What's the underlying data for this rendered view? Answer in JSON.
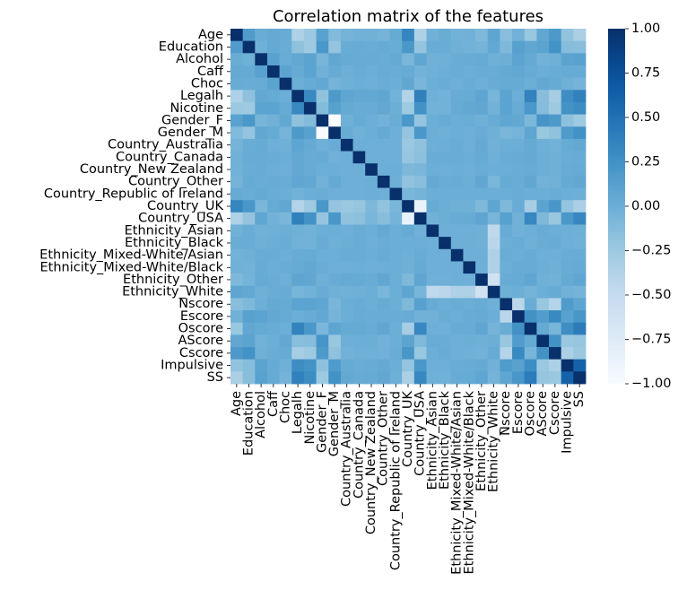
{
  "chart_data": {
    "type": "heatmap",
    "title": "Correlation matrix of the features",
    "xlabel": "",
    "ylabel": "",
    "colormap": "Blues",
    "colorscale": {
      "low": "#f7fbff",
      "high": "#08306b"
    },
    "vmin": -1.0,
    "vmax": 1.0,
    "colorbar": {
      "ticks": [
        1.0,
        0.75,
        0.5,
        0.25,
        0.0,
        -0.25,
        -0.5,
        -0.75,
        -1.0
      ],
      "tick_labels": [
        "1.00",
        "0.75",
        "0.50",
        "0.25",
        "0.00",
        "−0.25",
        "−0.50",
        "−0.75",
        "−1.00"
      ]
    },
    "labels": [
      "Age",
      "Education",
      "Alcohol",
      "Caff",
      "Choc",
      "Legalh",
      "Nicotine",
      "Gender_F",
      "Gender_M",
      "Country_Australia",
      "Country_Canada",
      "Country_New Zealand",
      "Country_Other",
      "Country_Republic of Ireland",
      "Country_UK",
      "Country_USA",
      "Ethnicity_Asian",
      "Ethnicity_Black",
      "Ethnicity_Mixed-White/Asian",
      "Ethnicity_Mixed-White/Black",
      "Ethnicity_Other",
      "Ethnicity_White",
      "Nscore",
      "Escore",
      "Oscore",
      "AScore",
      "Cscore",
      "Impulsive",
      "SS"
    ],
    "matrix": [
      [
        1.0,
        0.16,
        0.01,
        0.04,
        0.02,
        -0.35,
        -0.24,
        0.11,
        -0.11,
        -0.05,
        -0.03,
        -0.03,
        -0.05,
        0.03,
        0.35,
        -0.35,
        -0.03,
        0.01,
        -0.04,
        -0.03,
        -0.1,
        0.08,
        -0.14,
        -0.03,
        -0.22,
        0.06,
        0.18,
        -0.19,
        -0.33
      ],
      [
        0.16,
        1.0,
        -0.02,
        0.04,
        0.01,
        -0.17,
        -0.25,
        0.2,
        -0.2,
        0.01,
        0.02,
        0.01,
        0.03,
        0.01,
        0.2,
        -0.2,
        0.01,
        0.01,
        -0.02,
        -0.04,
        -0.05,
        0.05,
        -0.1,
        0.12,
        0.06,
        0.09,
        0.24,
        -0.13,
        -0.14
      ],
      [
        0.01,
        -0.02,
        1.0,
        0.11,
        0.02,
        0.05,
        0.09,
        -0.06,
        0.06,
        0.03,
        0.02,
        0.02,
        0.01,
        0.04,
        -0.07,
        0.07,
        -0.03,
        -0.02,
        0.01,
        0.02,
        0.03,
        -0.02,
        -0.01,
        0.1,
        0.04,
        -0.04,
        -0.02,
        0.09,
        0.11
      ],
      [
        0.04,
        0.04,
        0.11,
        1.0,
        0.09,
        0.03,
        0.1,
        -0.03,
        0.03,
        -0.01,
        0.01,
        0.0,
        0.02,
        0.01,
        0.03,
        -0.04,
        -0.02,
        0.0,
        0.01,
        0.0,
        0.01,
        0.01,
        0.04,
        0.05,
        0.02,
        0.0,
        0.01,
        0.03,
        0.03
      ],
      [
        0.02,
        0.01,
        0.02,
        0.09,
        1.0,
        0.0,
        0.03,
        0.05,
        -0.05,
        -0.02,
        0.0,
        -0.01,
        0.01,
        0.0,
        0.06,
        -0.07,
        0.0,
        0.01,
        -0.01,
        0.01,
        -0.01,
        0.02,
        0.03,
        0.03,
        0.0,
        0.05,
        0.03,
        -0.02,
        -0.05
      ],
      [
        -0.35,
        -0.17,
        0.05,
        0.03,
        0.0,
        1.0,
        0.32,
        -0.18,
        0.18,
        0.08,
        0.05,
        0.05,
        0.07,
        -0.04,
        -0.38,
        0.39,
        -0.02,
        -0.04,
        0.02,
        0.03,
        0.08,
        -0.06,
        0.1,
        0.0,
        0.37,
        -0.14,
        -0.3,
        0.28,
        0.38
      ],
      [
        -0.24,
        -0.25,
        0.09,
        0.1,
        0.03,
        0.32,
        1.0,
        -0.12,
        0.12,
        0.04,
        0.02,
        0.02,
        0.05,
        0.0,
        -0.25,
        0.25,
        -0.04,
        -0.04,
        0.03,
        0.05,
        0.06,
        -0.04,
        0.1,
        0.02,
        0.2,
        -0.13,
        -0.25,
        0.24,
        0.29
      ],
      [
        0.11,
        0.2,
        -0.06,
        -0.03,
        0.05,
        -0.18,
        -0.12,
        1.0,
        -1.0,
        -0.02,
        0.03,
        0.0,
        -0.04,
        0.01,
        0.2,
        -0.2,
        0.0,
        0.02,
        0.0,
        0.01,
        -0.02,
        0.02,
        0.07,
        0.05,
        -0.08,
        0.22,
        0.18,
        -0.17,
        -0.25
      ],
      [
        -0.11,
        -0.2,
        0.06,
        0.03,
        -0.05,
        0.18,
        0.12,
        -1.0,
        1.0,
        0.02,
        -0.03,
        0.0,
        0.04,
        -0.01,
        -0.2,
        0.2,
        0.0,
        -0.02,
        0.0,
        -0.01,
        0.02,
        -0.02,
        -0.07,
        -0.05,
        0.08,
        -0.22,
        -0.18,
        0.17,
        0.25
      ],
      [
        -0.05,
        0.01,
        0.03,
        -0.01,
        -0.02,
        0.08,
        0.04,
        -0.02,
        0.02,
        1.0,
        -0.01,
        -0.01,
        -0.01,
        -0.01,
        -0.23,
        -0.18,
        -0.01,
        0.0,
        0.01,
        -0.01,
        0.04,
        -0.03,
        0.0,
        0.0,
        0.04,
        -0.01,
        -0.04,
        0.03,
        0.05
      ],
      [
        -0.03,
        0.02,
        0.02,
        0.01,
        0.0,
        0.05,
        0.02,
        0.03,
        -0.03,
        -0.01,
        1.0,
        -0.01,
        -0.01,
        -0.01,
        -0.21,
        -0.16,
        0.01,
        0.01,
        0.01,
        0.0,
        0.03,
        -0.02,
        0.01,
        0.02,
        0.04,
        0.0,
        -0.02,
        0.01,
        0.02
      ],
      [
        -0.03,
        0.01,
        0.02,
        0.0,
        -0.01,
        0.05,
        0.02,
        0.0,
        0.0,
        -0.01,
        -0.01,
        1.0,
        0.0,
        0.0,
        -0.09,
        -0.07,
        0.0,
        -0.01,
        0.0,
        -0.01,
        0.01,
        0.0,
        0.0,
        0.01,
        0.02,
        0.0,
        -0.02,
        0.02,
        0.03
      ],
      [
        -0.05,
        0.03,
        0.01,
        0.02,
        0.01,
        0.07,
        0.05,
        -0.04,
        0.04,
        -0.01,
        -0.01,
        0.0,
        1.0,
        -0.01,
        -0.19,
        -0.14,
        0.04,
        0.01,
        0.02,
        0.0,
        0.06,
        -0.07,
        0.03,
        0.01,
        0.06,
        -0.04,
        -0.03,
        0.04,
        0.06
      ],
      [
        0.03,
        0.01,
        0.04,
        0.01,
        0.0,
        -0.04,
        0.0,
        0.01,
        -0.01,
        -0.01,
        -0.01,
        0.0,
        -0.01,
        1.0,
        -0.07,
        -0.05,
        0.0,
        0.0,
        0.0,
        0.0,
        0.0,
        0.0,
        0.0,
        0.01,
        0.0,
        0.0,
        0.01,
        0.0,
        -0.01
      ],
      [
        0.35,
        0.2,
        -0.07,
        0.03,
        0.06,
        -0.38,
        -0.25,
        0.2,
        -0.2,
        -0.23,
        -0.21,
        -0.09,
        -0.19,
        -0.07,
        1.0,
        -0.86,
        0.03,
        0.0,
        -0.02,
        -0.02,
        -0.1,
        0.08,
        -0.1,
        0.02,
        -0.3,
        0.09,
        0.21,
        -0.2,
        -0.33
      ],
      [
        -0.35,
        -0.2,
        0.07,
        -0.04,
        -0.07,
        0.39,
        0.25,
        -0.2,
        0.2,
        -0.18,
        -0.16,
        -0.07,
        -0.14,
        -0.05,
        -0.86,
        1.0,
        -0.03,
        0.0,
        0.02,
        0.03,
        0.08,
        -0.06,
        0.12,
        -0.03,
        0.33,
        -0.1,
        -0.22,
        0.2,
        0.33
      ],
      [
        -0.03,
        0.01,
        -0.03,
        -0.02,
        0.0,
        -0.02,
        -0.04,
        0.0,
        0.0,
        -0.01,
        0.01,
        0.0,
        0.04,
        0.0,
        0.03,
        -0.03,
        1.0,
        -0.01,
        -0.01,
        -0.01,
        -0.02,
        -0.45,
        0.02,
        -0.03,
        -0.01,
        0.02,
        0.0,
        -0.01,
        -0.02
      ],
      [
        0.01,
        0.01,
        -0.02,
        0.0,
        0.01,
        -0.04,
        -0.04,
        0.02,
        -0.02,
        0.0,
        0.01,
        -0.01,
        0.01,
        0.0,
        0.0,
        0.0,
        -0.01,
        1.0,
        -0.01,
        -0.01,
        -0.02,
        -0.43,
        0.0,
        0.01,
        -0.02,
        0.01,
        0.02,
        -0.01,
        -0.03
      ],
      [
        -0.04,
        -0.02,
        0.01,
        0.01,
        -0.01,
        0.02,
        0.03,
        0.0,
        0.0,
        0.01,
        0.01,
        0.0,
        0.02,
        0.0,
        -0.02,
        0.02,
        -0.01,
        -0.01,
        1.0,
        -0.01,
        -0.01,
        -0.35,
        0.01,
        0.0,
        0.02,
        -0.01,
        -0.01,
        0.01,
        0.02
      ],
      [
        -0.03,
        -0.04,
        0.02,
        0.0,
        0.01,
        0.03,
        0.05,
        0.01,
        -0.01,
        -0.01,
        0.0,
        -0.01,
        0.0,
        0.0,
        -0.02,
        0.03,
        -0.01,
        -0.01,
        -0.01,
        1.0,
        -0.01,
        -0.35,
        0.0,
        0.02,
        0.02,
        0.0,
        -0.02,
        0.02,
        0.03
      ],
      [
        -0.1,
        -0.05,
        0.03,
        0.01,
        -0.01,
        0.08,
        0.06,
        -0.02,
        0.02,
        0.04,
        0.03,
        0.01,
        0.06,
        0.0,
        -0.1,
        0.08,
        -0.02,
        -0.02,
        -0.01,
        -0.01,
        1.0,
        -0.6,
        0.02,
        0.03,
        0.07,
        -0.02,
        -0.04,
        0.04,
        0.07
      ],
      [
        0.08,
        0.05,
        -0.02,
        0.01,
        0.02,
        -0.06,
        -0.04,
        0.02,
        -0.02,
        -0.03,
        -0.02,
        0.0,
        -0.07,
        0.0,
        0.08,
        -0.06,
        -0.45,
        -0.43,
        -0.35,
        -0.35,
        -0.6,
        1.0,
        -0.02,
        0.0,
        -0.05,
        0.0,
        0.03,
        -0.03,
        -0.05
      ],
      [
        -0.14,
        -0.1,
        -0.01,
        0.04,
        0.03,
        0.1,
        0.1,
        0.07,
        -0.07,
        0.0,
        0.01,
        0.0,
        0.03,
        0.0,
        -0.1,
        0.12,
        0.02,
        0.0,
        0.01,
        0.0,
        0.02,
        -0.02,
        1.0,
        -0.43,
        0.01,
        -0.22,
        -0.39,
        0.17,
        0.08
      ],
      [
        -0.03,
        0.12,
        0.1,
        0.05,
        0.03,
        0.0,
        0.02,
        0.05,
        -0.05,
        0.0,
        0.02,
        0.01,
        0.01,
        0.01,
        0.02,
        -0.03,
        -0.03,
        0.01,
        0.0,
        0.02,
        0.03,
        0.0,
        -0.43,
        1.0,
        0.25,
        0.16,
        0.31,
        0.11,
        0.21
      ],
      [
        -0.22,
        0.06,
        0.04,
        0.02,
        0.0,
        0.37,
        0.2,
        -0.08,
        0.08,
        0.04,
        0.04,
        0.02,
        0.06,
        0.0,
        -0.3,
        0.33,
        -0.01,
        -0.02,
        0.02,
        0.02,
        0.07,
        -0.05,
        0.01,
        0.25,
        1.0,
        0.04,
        -0.06,
        0.28,
        0.42
      ],
      [
        0.06,
        0.09,
        -0.04,
        0.0,
        0.05,
        -0.14,
        -0.13,
        0.22,
        -0.22,
        -0.01,
        0.0,
        0.0,
        -0.04,
        0.0,
        0.09,
        -0.1,
        0.02,
        0.01,
        -0.01,
        0.0,
        -0.02,
        0.0,
        -0.22,
        0.16,
        0.04,
        1.0,
        0.25,
        -0.23,
        -0.21
      ],
      [
        0.18,
        0.24,
        -0.02,
        0.01,
        0.03,
        -0.3,
        -0.25,
        0.18,
        -0.18,
        -0.04,
        -0.02,
        -0.02,
        -0.03,
        0.01,
        0.21,
        -0.22,
        0.0,
        0.02,
        -0.01,
        -0.02,
        -0.04,
        0.03,
        -0.39,
        0.31,
        -0.06,
        0.25,
        1.0,
        -0.34,
        -0.23
      ],
      [
        -0.19,
        -0.13,
        0.09,
        0.03,
        -0.02,
        0.28,
        0.24,
        -0.17,
        0.17,
        0.03,
        0.01,
        0.02,
        0.04,
        0.0,
        -0.2,
        0.2,
        -0.01,
        -0.01,
        0.01,
        0.02,
        0.04,
        -0.03,
        0.17,
        0.11,
        0.28,
        -0.23,
        -0.34,
        1.0,
        0.62
      ],
      [
        -0.33,
        -0.14,
        0.11,
        0.03,
        -0.05,
        0.38,
        0.29,
        -0.25,
        0.25,
        0.05,
        0.02,
        0.03,
        0.06,
        -0.01,
        -0.33,
        0.33,
        -0.02,
        -0.03,
        0.02,
        0.03,
        0.07,
        -0.05,
        0.08,
        0.21,
        0.42,
        -0.21,
        -0.23,
        0.62,
        1.0
      ]
    ]
  }
}
